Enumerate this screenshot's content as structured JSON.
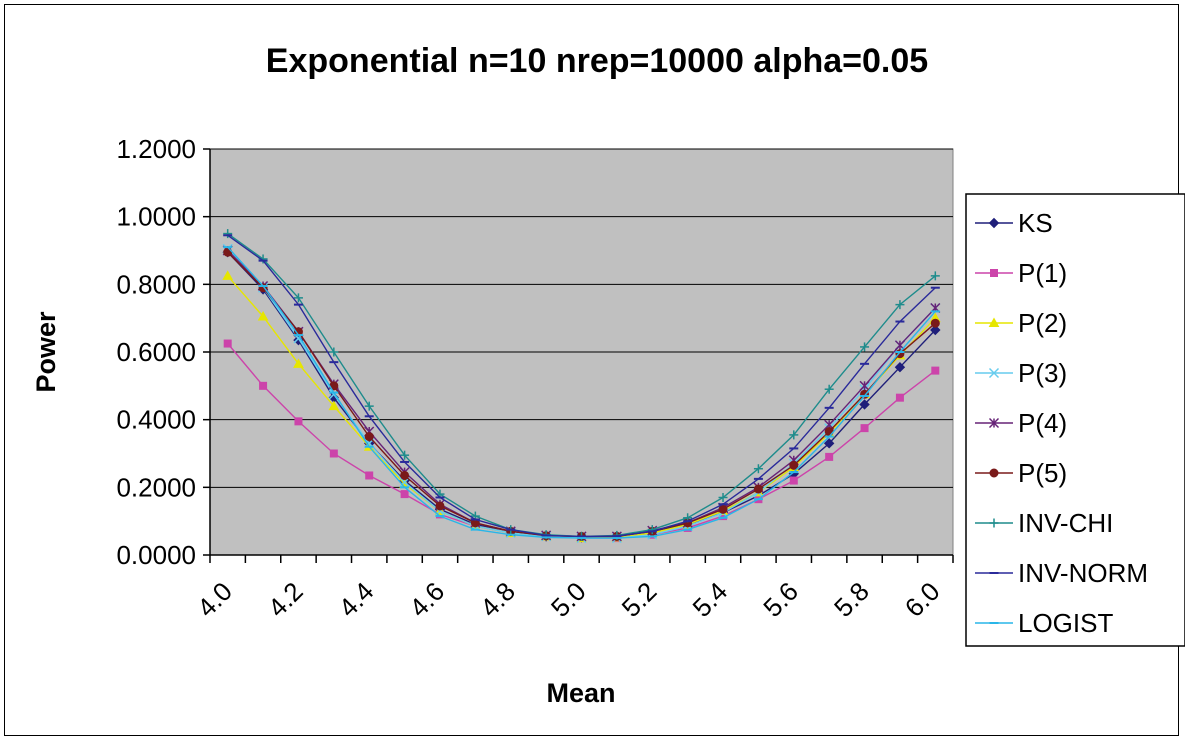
{
  "chart_data": {
    "type": "line",
    "title": "Exponential n=10 nrep=10000 alpha=0.05",
    "xlabel": "Mean",
    "ylabel": "Power",
    "ylim": [
      0,
      1.2
    ],
    "yticks": [
      "0.0000",
      "0.2000",
      "0.4000",
      "0.6000",
      "0.8000",
      "1.0000",
      "1.2000"
    ],
    "x": [
      4.05,
      4.15,
      4.25,
      4.35,
      4.45,
      4.55,
      4.65,
      4.75,
      4.85,
      4.95,
      5.05,
      5.15,
      5.25,
      5.35,
      5.45,
      5.55,
      5.65,
      5.75,
      5.85,
      5.95,
      6.05
    ],
    "xticks": [
      "4.0",
      "4.2",
      "4.4",
      "4.6",
      "4.8",
      "5.0",
      "5.2",
      "5.4",
      "5.6",
      "5.8",
      "6.0"
    ],
    "grid": true,
    "legend": "right",
    "series": [
      {
        "name": "KS",
        "color": "#1f1f7a",
        "marker": "diamond",
        "values": [
          0.895,
          0.785,
          0.635,
          0.465,
          0.33,
          0.22,
          0.135,
          0.09,
          0.07,
          0.055,
          0.052,
          0.055,
          0.07,
          0.09,
          0.125,
          0.175,
          0.24,
          0.33,
          0.445,
          0.555,
          0.665
        ]
      },
      {
        "name": "P(1)",
        "color": "#cc44aa",
        "marker": "square",
        "values": [
          0.625,
          0.5,
          0.395,
          0.3,
          0.235,
          0.18,
          0.12,
          0.085,
          0.065,
          0.055,
          0.05,
          0.05,
          0.06,
          0.08,
          0.115,
          0.165,
          0.22,
          0.29,
          0.375,
          0.465,
          0.545
        ]
      },
      {
        "name": "P(2)",
        "color": "#e6e600",
        "marker": "triangle",
        "values": [
          0.825,
          0.705,
          0.565,
          0.44,
          0.32,
          0.21,
          0.13,
          0.085,
          0.065,
          0.055,
          0.05,
          0.052,
          0.065,
          0.09,
          0.13,
          0.185,
          0.26,
          0.36,
          0.475,
          0.59,
          0.7
        ]
      },
      {
        "name": "P(3)",
        "color": "#66ccee",
        "marker": "x",
        "values": [
          0.905,
          0.79,
          0.64,
          0.475,
          0.33,
          0.215,
          0.13,
          0.085,
          0.065,
          0.055,
          0.05,
          0.05,
          0.06,
          0.085,
          0.125,
          0.185,
          0.27,
          0.375,
          0.49,
          0.62,
          0.73
        ]
      },
      {
        "name": "P(4)",
        "color": "#662277",
        "marker": "star",
        "values": [
          0.9,
          0.795,
          0.66,
          0.505,
          0.365,
          0.245,
          0.15,
          0.095,
          0.07,
          0.058,
          0.055,
          0.055,
          0.072,
          0.095,
          0.14,
          0.2,
          0.28,
          0.385,
          0.5,
          0.62,
          0.73
        ]
      },
      {
        "name": "P(5)",
        "color": "#7a1a1a",
        "marker": "circle",
        "values": [
          0.895,
          0.79,
          0.66,
          0.5,
          0.35,
          0.235,
          0.145,
          0.095,
          0.07,
          0.057,
          0.055,
          0.055,
          0.07,
          0.095,
          0.135,
          0.195,
          0.265,
          0.365,
          0.475,
          0.595,
          0.685
        ]
      },
      {
        "name": "INV-CHI",
        "color": "#1e8c8c",
        "marker": "plus",
        "values": [
          0.95,
          0.875,
          0.76,
          0.6,
          0.44,
          0.295,
          0.18,
          0.115,
          0.075,
          0.06,
          0.055,
          0.058,
          0.075,
          0.11,
          0.17,
          0.255,
          0.355,
          0.49,
          0.615,
          0.74,
          0.825
        ]
      },
      {
        "name": "INV-NORM",
        "color": "#2a2a9a",
        "marker": "dash",
        "values": [
          0.945,
          0.87,
          0.74,
          0.57,
          0.41,
          0.275,
          0.17,
          0.105,
          0.075,
          0.058,
          0.055,
          0.056,
          0.07,
          0.1,
          0.15,
          0.225,
          0.315,
          0.435,
          0.565,
          0.69,
          0.79
        ]
      },
      {
        "name": "LOGIST",
        "color": "#29b6e8",
        "marker": "dash",
        "values": [
          0.91,
          0.795,
          0.65,
          0.48,
          0.32,
          0.2,
          0.115,
          0.075,
          0.06,
          0.052,
          0.05,
          0.05,
          0.055,
          0.075,
          0.11,
          0.165,
          0.245,
          0.35,
          0.47,
          0.6,
          0.72
        ]
      }
    ]
  }
}
